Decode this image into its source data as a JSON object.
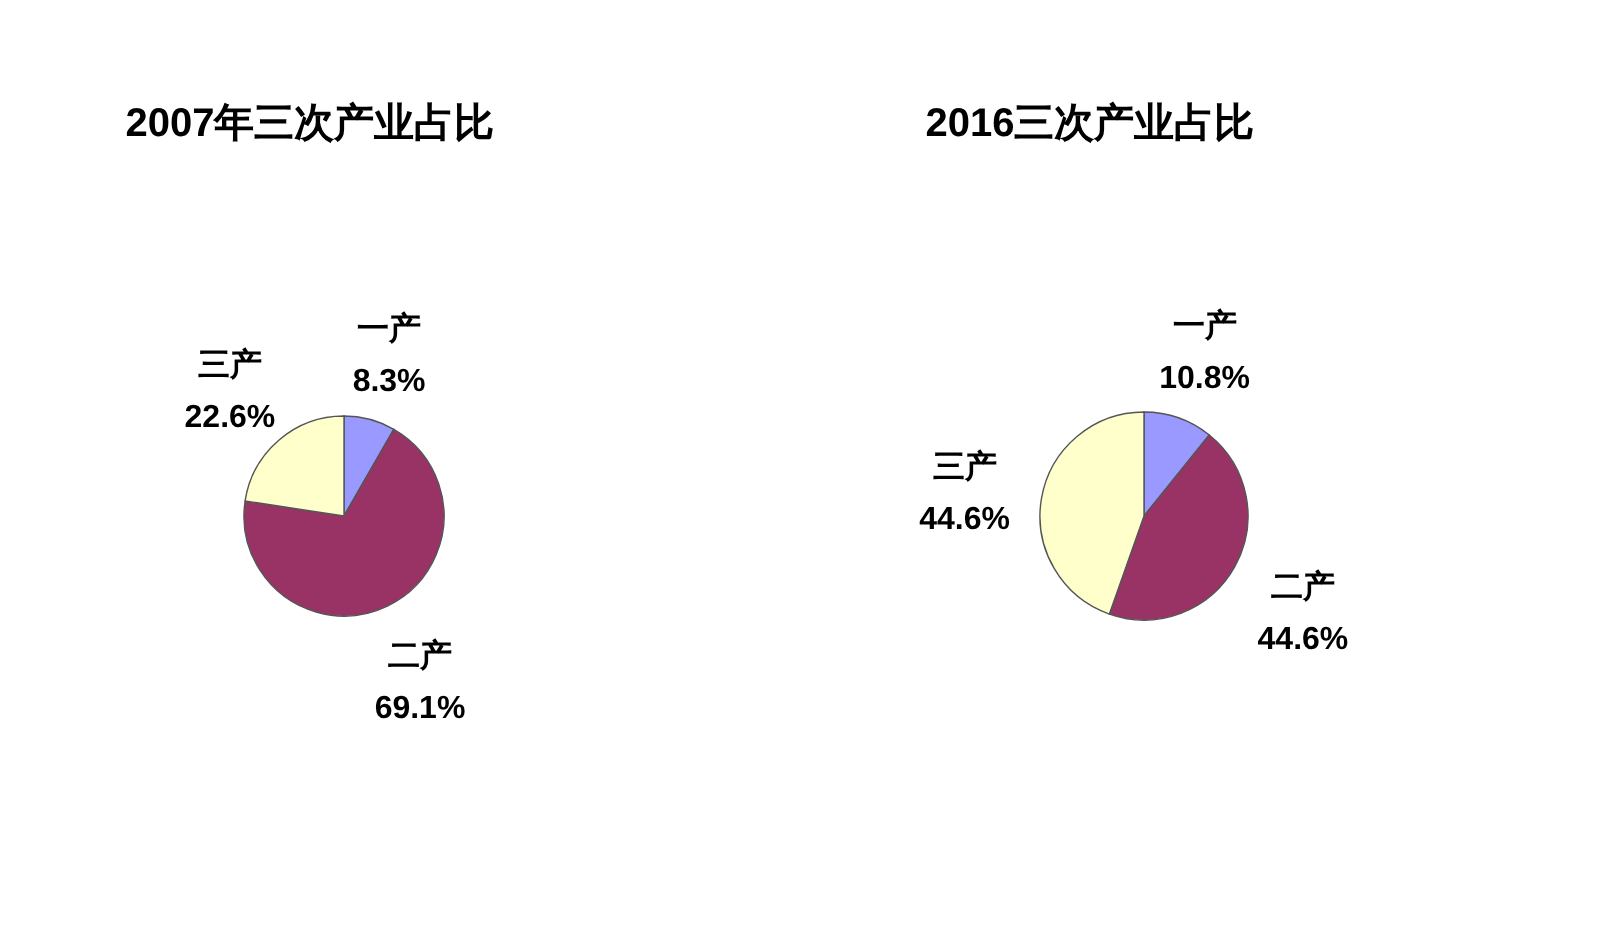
{
  "chart_data": [
    {
      "type": "pie",
      "title": "2007年三次产业占比",
      "categories": [
        "一产",
        "二产",
        "三产"
      ],
      "values": [
        8.3,
        69.1,
        22.6
      ],
      "colors": [
        "#9999ff",
        "#993366",
        "#ffffcc"
      ],
      "value_labels": [
        "8.3%",
        "69.1%",
        "22.6%"
      ]
    },
    {
      "type": "pie",
      "title": "2016三次产业占比",
      "categories": [
        "一产",
        "二产",
        "三产"
      ],
      "values": [
        10.8,
        44.6,
        44.6
      ],
      "colors": [
        "#9999ff",
        "#993366",
        "#ffffcc"
      ],
      "value_labels": [
        "10.8%",
        "44.6%",
        "44.6%"
      ]
    }
  ]
}
